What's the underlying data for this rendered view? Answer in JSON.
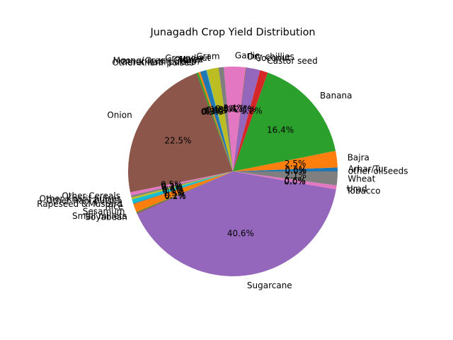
{
  "chart_data": {
    "type": "pie",
    "title": "Junagadh Crop Yield Distribution",
    "start_angle": 0,
    "direction": "counterclockwise",
    "autopct_format": "%.1f%%",
    "slices": [
      {
        "label": "Arhar/Tur",
        "value": 0.6,
        "color": "#1f77b4"
      },
      {
        "label": "Bajra",
        "value": 2.5,
        "color": "#ff7f0e"
      },
      {
        "label": "Banana",
        "value": 16.2,
        "color": "#2ca02c"
      },
      {
        "label": "Castor seed",
        "value": 1.2,
        "color": "#d62728"
      },
      {
        "label": "Coconut",
        "value": 2.1,
        "color": "#9467bd"
      },
      {
        "label": "Dry chillies",
        "value": 0.1,
        "color": "#8c564b"
      },
      {
        "label": "Garlic",
        "value": 3.3,
        "color": "#e377c2"
      },
      {
        "label": "Gram",
        "value": 0.8,
        "color": "#7f7f7f"
      },
      {
        "label": "Groundnut",
        "value": 1.8,
        "color": "#bcbd22"
      },
      {
        "label": "Jowar",
        "value": 0.05,
        "color": "#17becf"
      },
      {
        "label": "Maize",
        "value": 0.05,
        "color": "#1f77b4"
      },
      {
        "label": "Moong(Green Gram)",
        "value": 0.9,
        "color": "#1f77b4"
      },
      {
        "label": "Other Rabi pulses",
        "value": 0.3,
        "color": "#ff7f0e"
      },
      {
        "label": "Other Kharif pulses",
        "value": 0.3,
        "color": "#2ca02c"
      },
      {
        "label": "Onion",
        "value": 22.2,
        "color": "#8c564b"
      },
      {
        "label": "Other Cereals",
        "value": 0.5,
        "color": "#e377c2"
      },
      {
        "label": "Other Kharif pulses",
        "value": 0.3,
        "color": "#7f7f7f"
      },
      {
        "label": "Other Rabi pulses",
        "value": 0.3,
        "color": "#bcbd22"
      },
      {
        "label": "Rapeseed &Mustard",
        "value": 0.6,
        "color": "#17becf"
      },
      {
        "label": "Rice",
        "value": 0.1,
        "color": "#1f77b4"
      },
      {
        "label": "Sesamum",
        "value": 1.3,
        "color": "#ff7f0e"
      },
      {
        "label": "Small millets",
        "value": 0.1,
        "color": "#2ca02c"
      },
      {
        "label": "Soyabean",
        "value": 0.2,
        "color": "#8c564b"
      },
      {
        "label": "Sugarcane",
        "value": 40.0,
        "color": "#9467bd"
      },
      {
        "label": "Tobacco",
        "value": 0.0,
        "color": "#8c564b"
      },
      {
        "label": "Urad",
        "value": 0.6,
        "color": "#e377c2"
      },
      {
        "label": "Wheat",
        "value": 2.1,
        "color": "#7f7f7f"
      },
      {
        "label": "other oilseeds",
        "value": 0.0,
        "color": "#bcbd22"
      }
    ]
  }
}
